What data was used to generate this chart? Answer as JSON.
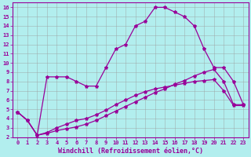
{
  "xlabel": "Windchill (Refroidissement éolien,°C)",
  "bg_color": "#b2eeee",
  "line_color": "#990099",
  "grid_color": "#999999",
  "xlim": [
    -0.5,
    23.5
  ],
  "ylim": [
    2,
    16.5
  ],
  "xticks": [
    0,
    1,
    2,
    3,
    4,
    5,
    6,
    7,
    8,
    9,
    10,
    11,
    12,
    13,
    14,
    15,
    16,
    17,
    18,
    19,
    20,
    21,
    22,
    23
  ],
  "yticks": [
    2,
    3,
    4,
    5,
    6,
    7,
    8,
    9,
    10,
    11,
    12,
    13,
    14,
    15,
    16
  ],
  "line1_x": [
    0,
    1,
    2,
    3,
    4,
    5,
    6,
    7,
    8,
    9,
    10,
    11,
    12,
    13,
    14,
    15,
    16,
    17,
    18,
    19,
    20,
    21,
    22,
    23
  ],
  "line1_y": [
    4.7,
    3.8,
    2.2,
    2.4,
    2.7,
    2.9,
    3.1,
    3.4,
    3.8,
    4.3,
    4.8,
    5.3,
    5.8,
    6.3,
    6.8,
    7.2,
    7.7,
    8.1,
    8.6,
    9.0,
    9.3,
    8.0,
    5.5,
    5.5
  ],
  "line2_x": [
    0,
    1,
    2,
    3,
    4,
    5,
    6,
    7,
    8,
    9,
    10,
    11,
    12,
    13,
    14,
    15,
    16,
    17,
    18,
    19,
    20,
    21,
    22,
    23
  ],
  "line2_y": [
    4.7,
    3.8,
    2.2,
    2.5,
    3.0,
    3.4,
    3.8,
    4.0,
    4.4,
    4.9,
    5.5,
    6.0,
    6.5,
    6.9,
    7.2,
    7.4,
    7.6,
    7.8,
    8.0,
    8.1,
    8.2,
    7.0,
    5.4,
    5.4
  ],
  "line3_x": [
    0,
    1,
    2,
    3,
    4,
    5,
    6,
    7,
    8,
    9,
    10,
    11,
    12,
    13,
    14,
    15,
    16,
    17,
    18,
    19,
    20,
    21,
    22,
    23
  ],
  "line3_y": [
    4.7,
    3.8,
    2.2,
    8.5,
    8.5,
    8.5,
    8.0,
    7.5,
    7.5,
    9.5,
    11.5,
    12.0,
    14.0,
    14.5,
    16.0,
    16.0,
    15.5,
    15.0,
    14.0,
    11.5,
    9.5,
    9.5,
    8.0,
    5.5
  ],
  "marker": "*",
  "markersize": 3,
  "linewidth": 0.9,
  "tick_fontsize": 5,
  "xlabel_fontsize": 6,
  "font_family": "monospace"
}
